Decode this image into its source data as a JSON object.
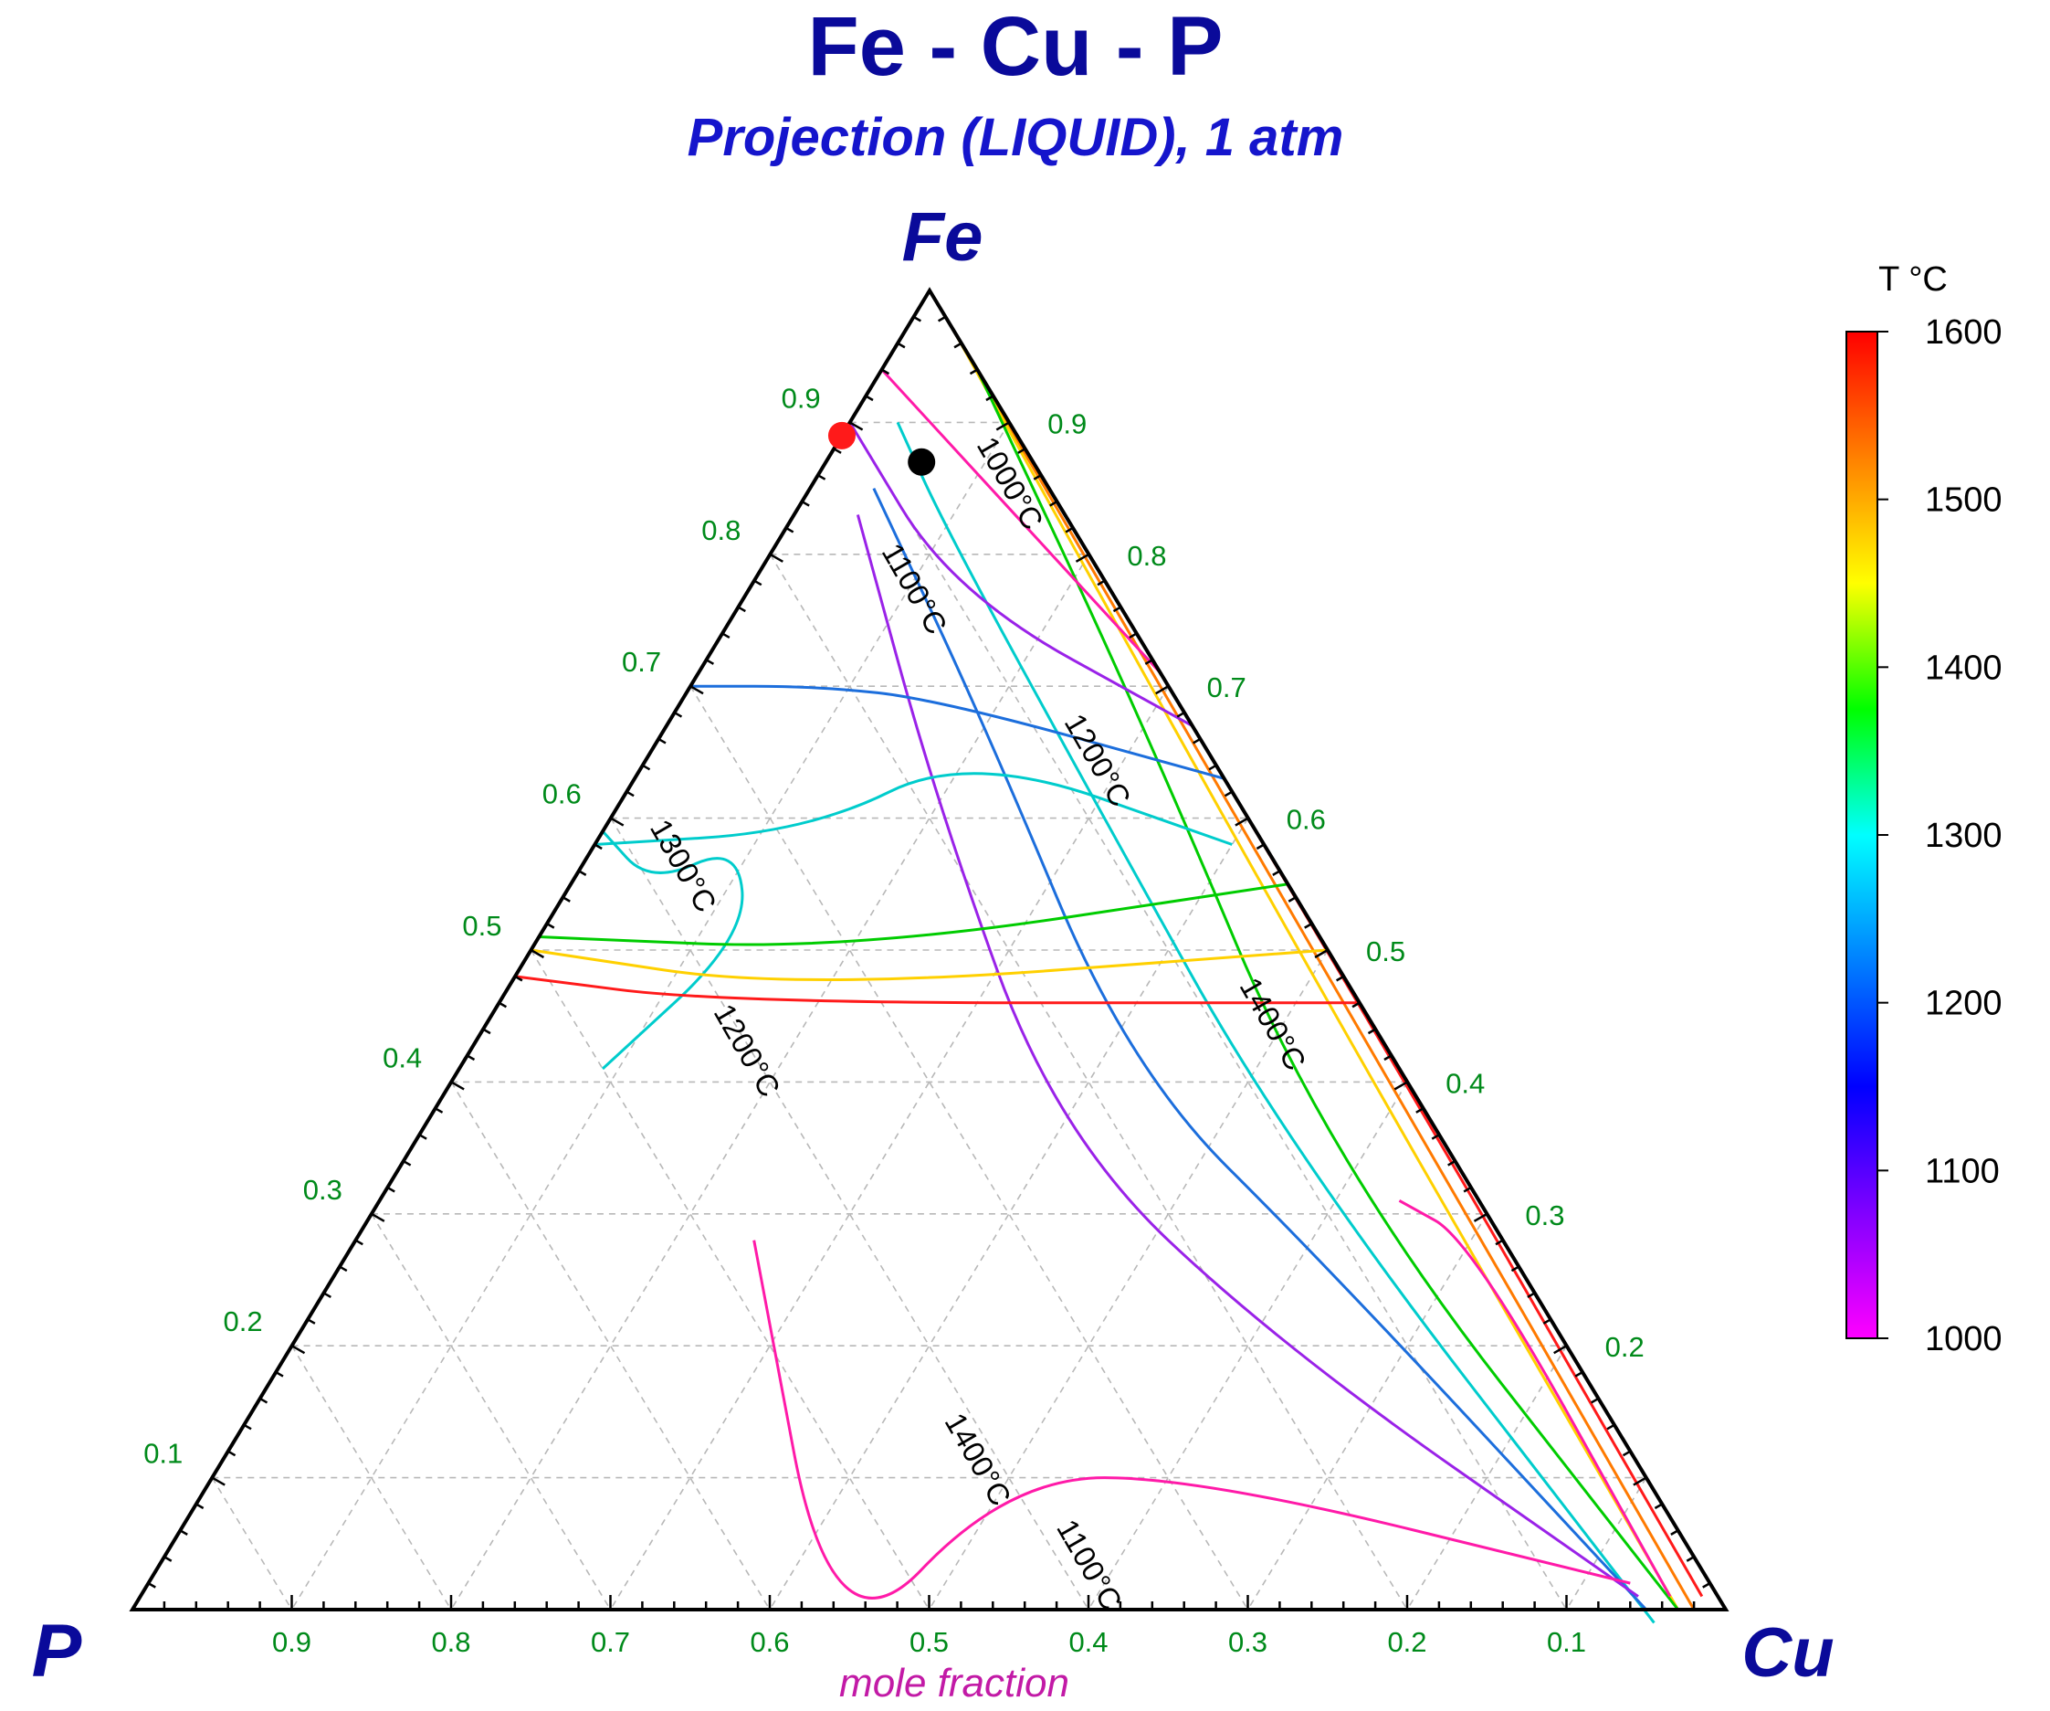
{
  "chart_data": {
    "type": "ternary-contour",
    "title": "Fe - Cu - P",
    "subtitle": "Projection (LIQUID), 1 atm",
    "components": {
      "top": "Fe",
      "left": "P",
      "right": "Cu"
    },
    "axis_label": "mole fraction",
    "ticks": {
      "fe": [
        "0.1",
        "0.2",
        "0.3",
        "0.4",
        "0.5",
        "0.6",
        "0.7",
        "0.8",
        "0.9"
      ],
      "cu": [
        "0.2",
        "0.3",
        "0.4",
        "0.5",
        "0.6",
        "0.7",
        "0.8",
        "0.9"
      ],
      "p": [
        "0.9",
        "0.8",
        "0.7",
        "0.6",
        "0.5",
        "0.4",
        "0.3",
        "0.2",
        "0.1"
      ]
    },
    "grid": true,
    "colorbar": {
      "title": "T °C",
      "min": 1000,
      "max": 1600,
      "tick_labels": [
        "1600",
        "1500",
        "1400",
        "1300",
        "1200",
        "1100",
        "1000"
      ],
      "colors": [
        "#ff00ff",
        "#8000ff",
        "#0000ff",
        "#0080ff",
        "#00ffff",
        "#00ff00",
        "#ffff00",
        "#ff8000",
        "#ff0000"
      ]
    },
    "isotherm_labels": [
      {
        "text": "1000°C",
        "p": 0.03,
        "cu": 0.12
      },
      {
        "text": "1100°C",
        "p": 0.13,
        "cu": 0.1
      },
      {
        "text": "1200°C",
        "p": 0.08,
        "cu": 0.28
      },
      {
        "text": "1300°C",
        "p": 0.38,
        "cu": 0.06
      },
      {
        "text": "1400°C",
        "p": 0.07,
        "cu": 0.49
      },
      {
        "text": "1200°C",
        "p": 0.41,
        "cu": 0.17
      },
      {
        "text": "1400°C",
        "p": 0.42,
        "cu": 0.47
      },
      {
        "text": "1100°C",
        "p": 0.39,
        "cu": 0.58
      }
    ],
    "points": [
      {
        "name": "red",
        "color": "#ff1a1a",
        "p": 0.11,
        "cu": 0.0
      },
      {
        "name": "black",
        "color": "#000000",
        "p": 0.07,
        "cu": 0.06
      }
    ],
    "isotherms": [
      {
        "T": 1600,
        "color": "#ff1a1a",
        "pts": [
          [
            0,
            0.01
          ],
          [
            0.0,
            0.56
          ],
          [
            0.01,
            0.98
          ]
        ]
      },
      {
        "T": 1550,
        "color": "#ff7a00",
        "pts": [
          [
            0,
            0.02
          ],
          [
            0.01,
            0.56
          ],
          [
            0.02,
            0.98
          ]
        ]
      },
      {
        "T": 1500,
        "color": "#ffd000",
        "pts": [
          [
            0,
            0.03
          ],
          [
            0.02,
            0.5
          ],
          [
            0.03,
            0.97
          ]
        ]
      },
      {
        "T": 1400,
        "color": "#00cc00",
        "pts": [
          [
            0,
            0.06
          ],
          [
            0.03,
            0.3
          ],
          [
            0.08,
            0.58
          ],
          [
            0.03,
            0.97
          ]
        ]
      },
      {
        "T": 1300,
        "color": "#00cccc",
        "pts": [
          [
            0.07,
            0.03
          ],
          [
            0.08,
            0.1
          ],
          [
            0.09,
            0.3
          ],
          [
            0.1,
            0.55
          ],
          [
            0.05,
            0.96
          ]
        ]
      },
      {
        "T": 1200,
        "color": "#1c6edc",
        "pts": [
          [
            0.11,
            0.04
          ],
          [
            0.13,
            0.2
          ],
          [
            0.17,
            0.42
          ],
          [
            0.12,
            0.62
          ],
          [
            0.05,
            0.95
          ]
        ]
      },
      {
        "T": 1100,
        "color": "#9a22e8",
        "pts": [
          [
            0.13,
            0.04
          ],
          [
            0.19,
            0.2
          ],
          [
            0.24,
            0.4
          ],
          [
            0.18,
            0.62
          ],
          [
            0.05,
            0.94
          ]
        ]
      },
      {
        "T": 1000,
        "color": "#ff1aa8",
        "pts": [
          [
            0.47,
            0.25
          ],
          [
            0.58,
            0.46
          ],
          [
            0.4,
            0.5
          ],
          [
            0.28,
            0.62
          ],
          [
            0.05,
            0.93
          ]
        ]
      },
      {
        "T": 1000,
        "color": "#ff1aa8",
        "pts": [
          [
            0.05,
            0.64
          ],
          [
            0.02,
            0.7
          ],
          [
            0.03,
            0.96
          ]
        ]
      },
      {
        "T": 1200,
        "color": "#00cccc",
        "pts": [
          [
            0.5,
            0.09
          ],
          [
            0.36,
            0.13
          ],
          [
            0.33,
            0.09
          ],
          [
            0.4,
            0.05
          ],
          [
            0.41,
            0.0
          ]
        ]
      },
      {
        "T": 1600,
        "color": "#ff1a1a",
        "pts": [
          [
            0.52,
            0.0
          ],
          [
            0.4,
            0.14
          ],
          [
            0.0,
            0.54
          ]
        ]
      },
      {
        "T": 1500,
        "color": "#ffd000",
        "pts": [
          [
            0.5,
            0.0
          ],
          [
            0.35,
            0.18
          ],
          [
            0.0,
            0.5
          ]
        ]
      },
      {
        "T": 1400,
        "color": "#00cc00",
        "pts": [
          [
            0.49,
            0.0
          ],
          [
            0.3,
            0.2
          ],
          [
            0.0,
            0.45
          ]
        ]
      },
      {
        "T": 1300,
        "color": "#00cccc",
        "pts": [
          [
            0.42,
            0.0
          ],
          [
            0.28,
            0.13
          ],
          [
            0.15,
            0.2
          ],
          [
            0.02,
            0.4
          ]
        ]
      },
      {
        "T": 1200,
        "color": "#1c6edc",
        "pts": [
          [
            0.3,
            0.0
          ],
          [
            0.22,
            0.08
          ],
          [
            0.15,
            0.16
          ],
          [
            0.0,
            0.37
          ]
        ]
      },
      {
        "T": 1100,
        "color": "#9a22e8",
        "pts": [
          [
            0.1,
            0.0
          ],
          [
            0.1,
            0.13
          ],
          [
            0.0,
            0.33
          ]
        ]
      },
      {
        "T": 1000,
        "color": "#ff1aa8",
        "pts": [
          [
            0.06,
            0.0
          ],
          [
            0.0,
            0.29
          ]
        ]
      }
    ]
  }
}
